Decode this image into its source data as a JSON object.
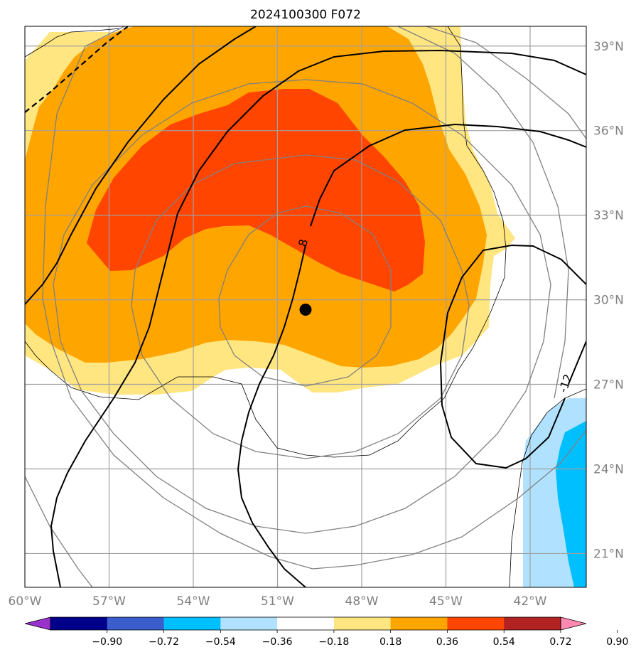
{
  "chart_data": {
    "type": "map-contour",
    "title": "2024100300 F072",
    "x_ticks": [
      "60°W",
      "57°W",
      "54°W",
      "51°W",
      "48°W",
      "45°W",
      "42°W"
    ],
    "x_tick_values": [
      -60,
      -57,
      -54,
      -51,
      -48,
      -45,
      -42
    ],
    "y_ticks": [
      "39°N",
      "36°N",
      "33°N",
      "30°N",
      "27°N",
      "24°N",
      "21°N"
    ],
    "y_tick_values": [
      39,
      36,
      33,
      30,
      27,
      24,
      21
    ],
    "xlim": [
      -60,
      -40
    ],
    "ylim": [
      19.8,
      39.7
    ],
    "center_marker": {
      "lon": -50.0,
      "lat": 29.65
    },
    "contour_labels": [
      "8",
      "-12"
    ],
    "colorbar": {
      "extend": "both",
      "boundaries": [
        -0.9,
        -0.72,
        -0.54,
        -0.36,
        -0.18,
        0.18,
        0.36,
        0.54,
        0.72,
        0.9
      ],
      "tick_labels": [
        "−0.90",
        "−0.72",
        "−0.54",
        "−0.36",
        "−0.18",
        "0.18",
        "0.36",
        "0.54",
        "0.72",
        "0.90"
      ],
      "colors": [
        "#9932cc",
        "#00008b",
        "#3a5fcd",
        "#00bfff",
        "#b0e2ff",
        "#ffffff",
        "#ffe680",
        "#ffa500",
        "#ff4500",
        "#b22222",
        "#ff88b0"
      ]
    },
    "fill_colors": {
      "light_yellow": "#ffe680",
      "orange": "#ffa500",
      "red_orange": "#ff4500",
      "light_blue": "#b0e2ff",
      "cyan": "#00bfff"
    },
    "grid": true
  }
}
